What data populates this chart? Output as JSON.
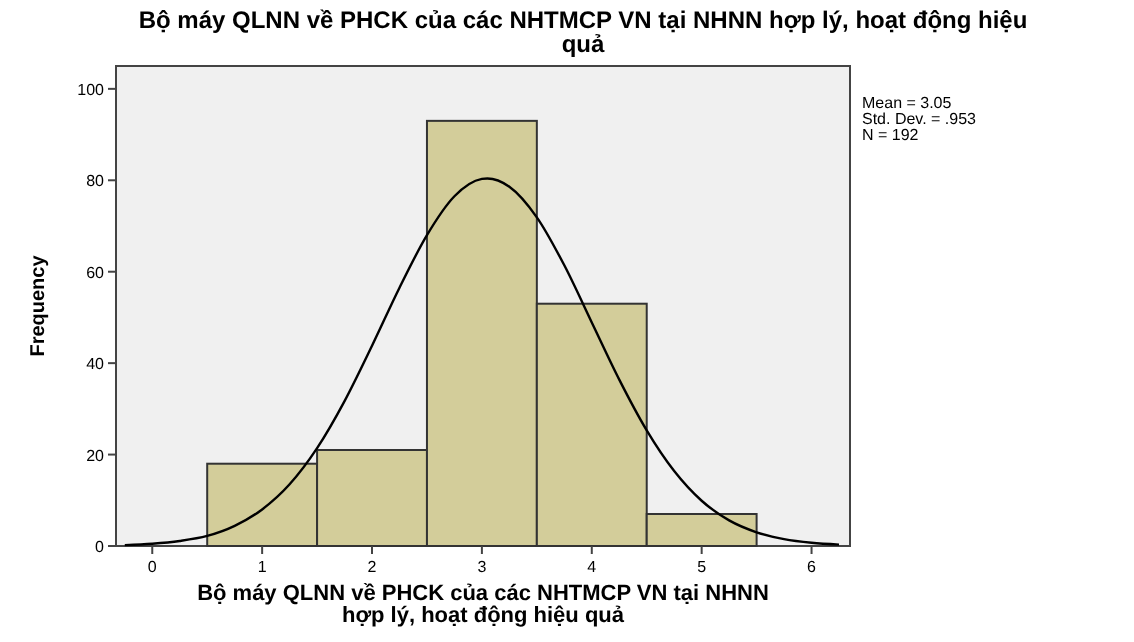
{
  "chart_data": {
    "type": "histogram",
    "title": "Bộ máy QLNN về PHCK của các NHTMCP VN tại NHNN hợp lý, hoạt động hiệu\nquả",
    "xlabel": "Bộ máy QLNN về PHCK của các NHTMCP VN tại NHNN\nhợp lý, hoạt động hiệu quả",
    "ylabel": "Frequency",
    "annotations": [
      "Mean = 3.05",
      "Std. Dev. = .953",
      "N = 192"
    ],
    "bins": [
      0.5,
      1.5,
      2.5,
      3.5,
      4.5,
      5.5
    ],
    "values": [
      18,
      21,
      93,
      53,
      7
    ],
    "color": "#d3cd9a",
    "series": [
      {
        "type": "line",
        "color": "#000000",
        "x": [
          -0.25,
          0,
          0.25,
          0.5,
          0.75,
          1,
          1.25,
          1.5,
          1.75,
          2,
          2.25,
          2.5,
          2.75,
          3,
          3.05,
          3.25,
          3.5,
          3.75,
          4,
          4.25,
          4.5,
          4.75,
          5,
          5.25,
          5.5,
          5.75,
          6,
          6.25
        ],
        "values": [
          0.2,
          0.5,
          1.1,
          2.2,
          4.4,
          8.0,
          13.5,
          21.4,
          31.7,
          43.8,
          56.5,
          68.0,
          76.5,
          80.3,
          80.4,
          78.6,
          71.9,
          61.4,
          48.9,
          36.4,
          25.3,
          16.4,
          9.9,
          5.6,
          3.0,
          1.5,
          0.7,
          0.3
        ]
      }
    ],
    "xlim": [
      -0.33,
      6.35
    ],
    "ylim": [
      0,
      105
    ],
    "xticks": [
      0,
      1,
      2,
      3,
      4,
      5,
      6
    ],
    "yticks": [
      0,
      20,
      40,
      60,
      80,
      100
    ],
    "grid": false,
    "marker": "none",
    "line_style": "solid"
  }
}
